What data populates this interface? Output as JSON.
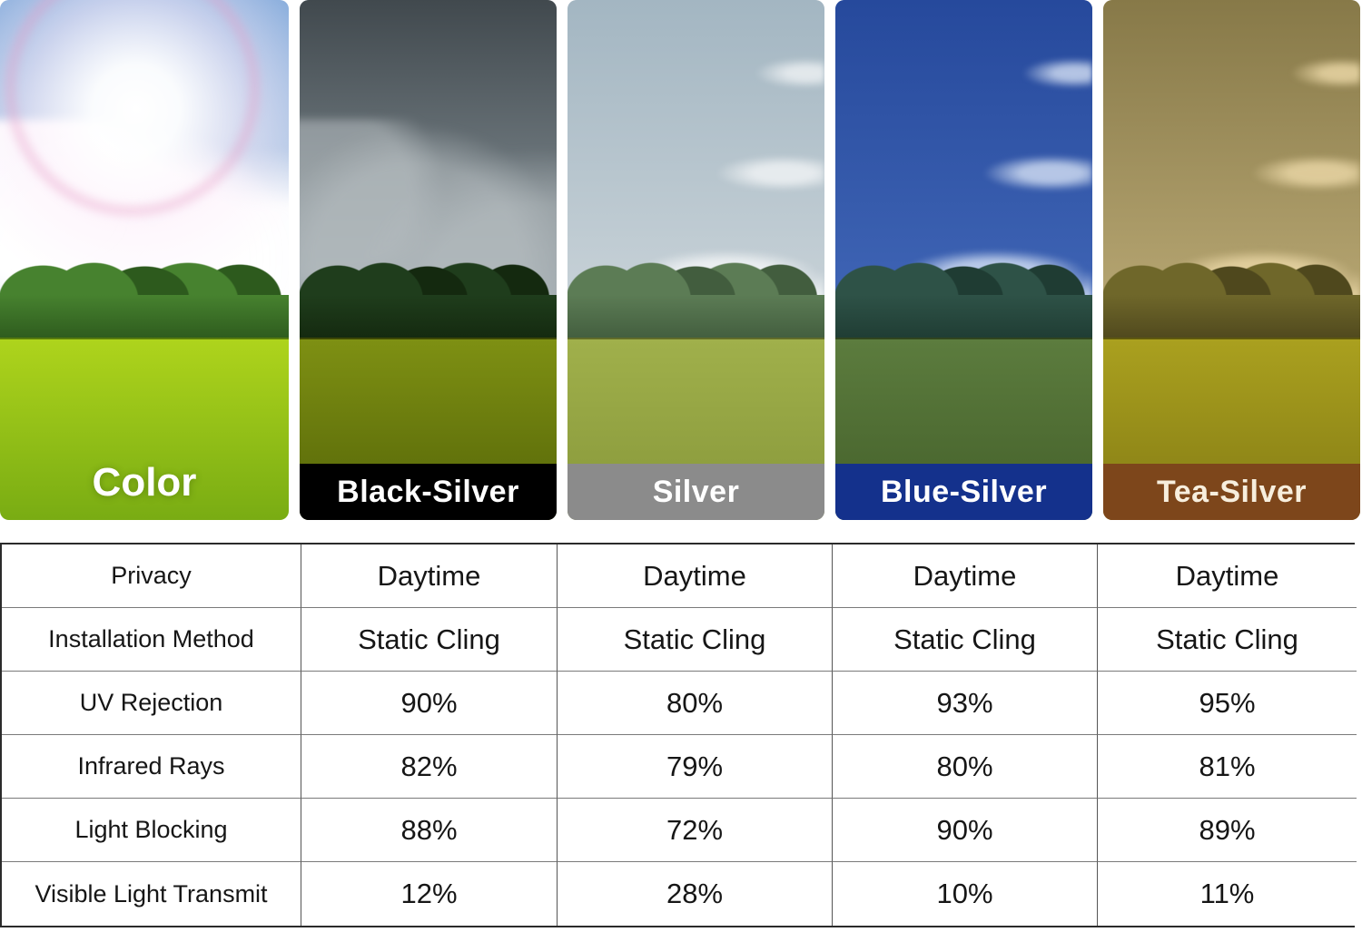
{
  "panels": [
    {
      "label": "Color",
      "colors": {
        "sky_top": "#84abdb",
        "sky_bottom": "#d8e2ee",
        "cloud": "rgba(255,255,255,0.97)",
        "tree": "#47822f",
        "tree_dark": "#2d5a1d",
        "grass_top": "#aed41c",
        "grass_bottom": "#79ac13",
        "bar_bg": "transparent",
        "bar_text": "#ffffff"
      }
    },
    {
      "label": "Black-Silver",
      "colors": {
        "sky_top": "#41494e",
        "sky_bottom": "#97a3a9",
        "cloud": "rgba(186,193,196,0.55)",
        "tree": "#1f3d1c",
        "tree_dark": "#14290f",
        "grass_top": "#7e9013",
        "grass_bottom": "#556508",
        "bar_bg": "#000000",
        "bar_text": "#ffffff"
      }
    },
    {
      "label": "Silver",
      "colors": {
        "sky_top": "#a3b6c2",
        "sky_bottom": "#ccd5da",
        "cloud": "rgba(255,255,255,0.65)",
        "tree": "#5c7c55",
        "tree_dark": "#425d3e",
        "grass_top": "#a0b04b",
        "grass_bottom": "#87973a",
        "bar_bg": "#8b8b8b",
        "bar_text": "#ffffff"
      }
    },
    {
      "label": "Blue-Silver",
      "colors": {
        "sky_top": "#26499c",
        "sky_bottom": "#4268b8",
        "cloud": "rgba(225,235,250,0.75)",
        "tree": "#2e5247",
        "tree_dark": "#1f3c33",
        "grass_top": "#5c7c3e",
        "grass_bottom": "#44602a",
        "bar_bg": "#14318c",
        "bar_text": "#ffffff"
      }
    },
    {
      "label": "Tea-Silver",
      "colors": {
        "sky_top": "#877948",
        "sky_bottom": "#bcab77",
        "cloud": "rgba(228,209,160,0.9)",
        "tree": "#6f672a",
        "tree_dark": "#4f481d",
        "grass_top": "#aaa01f",
        "grass_bottom": "#847c14",
        "bar_bg": "#7d461b",
        "bar_text": "#f7eedd"
      }
    }
  ],
  "chart_data": {
    "type": "table",
    "columns": [
      "Black-Silver",
      "Silver",
      "Blue-Silver",
      "Tea-Silver"
    ],
    "rows": [
      {
        "metric": "Privacy",
        "values": [
          "Daytime",
          "Daytime",
          "Daytime",
          "Daytime"
        ]
      },
      {
        "metric": "Installation Method",
        "values": [
          "Static Cling",
          "Static Cling",
          "Static Cling",
          "Static Cling"
        ]
      },
      {
        "metric": "UV Rejection",
        "values": [
          "90%",
          "80%",
          "93%",
          "95%"
        ]
      },
      {
        "metric": "Infrared Rays",
        "values": [
          "82%",
          "79%",
          "80%",
          "81%"
        ]
      },
      {
        "metric": "Light Blocking",
        "values": [
          "88%",
          "72%",
          "90%",
          "89%"
        ]
      },
      {
        "metric": "Visible Light Transmit",
        "values": [
          "12%",
          "28%",
          "10%",
          "11%"
        ]
      }
    ]
  }
}
